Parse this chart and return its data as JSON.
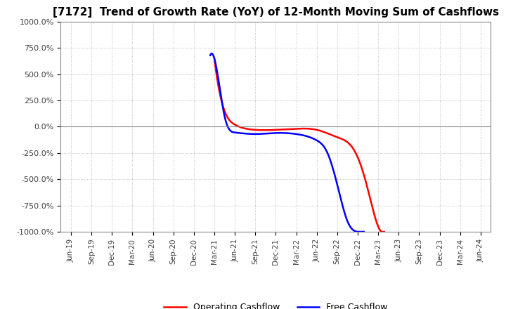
{
  "title": "[7172]  Trend of Growth Rate (YoY) of 12-Month Moving Sum of Cashflows",
  "title_fontsize": 11,
  "ylim": [
    -1000,
    1000
  ],
  "yticks": [
    -1000,
    -750,
    -500,
    -250,
    0,
    250,
    500,
    750,
    1000
  ],
  "yticklabels": [
    "-1000.0%",
    "-750.0%",
    "-500.0%",
    "-250.0%",
    "0.0%",
    "250.0%",
    "500.0%",
    "750.0%",
    "1000.0%"
  ],
  "x_labels": [
    "Jun-19",
    "Sep-19",
    "Dec-19",
    "Mar-20",
    "Jun-20",
    "Sep-20",
    "Dec-20",
    "Mar-21",
    "Jun-21",
    "Sep-21",
    "Dec-21",
    "Mar-22",
    "Jun-22",
    "Sep-22",
    "Dec-22",
    "Mar-23",
    "Jun-23",
    "Sep-23",
    "Dec-23",
    "Mar-24",
    "Jun-24"
  ],
  "op_color": "#ff0000",
  "fc_color": "#0000ff",
  "background_color": "#ffffff",
  "grid_color": "#b0b0b0",
  "op_key_x": [
    7.0,
    7.5,
    8.0,
    9.0,
    10.0,
    11.0,
    12.0,
    13.0,
    14.0,
    14.5,
    15.0,
    15.3
  ],
  "op_key_y": [
    650,
    150,
    20,
    -30,
    -30,
    -20,
    -30,
    -100,
    -290,
    -600,
    -950,
    -1000
  ],
  "fc_key_x": [
    6.8,
    7.0,
    7.5,
    8.0,
    9.0,
    10.0,
    11.0,
    12.0,
    12.5,
    13.0,
    13.5,
    14.0,
    14.3
  ],
  "fc_key_y": [
    680,
    650,
    100,
    -55,
    -70,
    -60,
    -70,
    -130,
    -240,
    -550,
    -900,
    -1000,
    -1000
  ],
  "legend_labels": [
    "Operating Cashflow",
    "Free Cashflow"
  ]
}
